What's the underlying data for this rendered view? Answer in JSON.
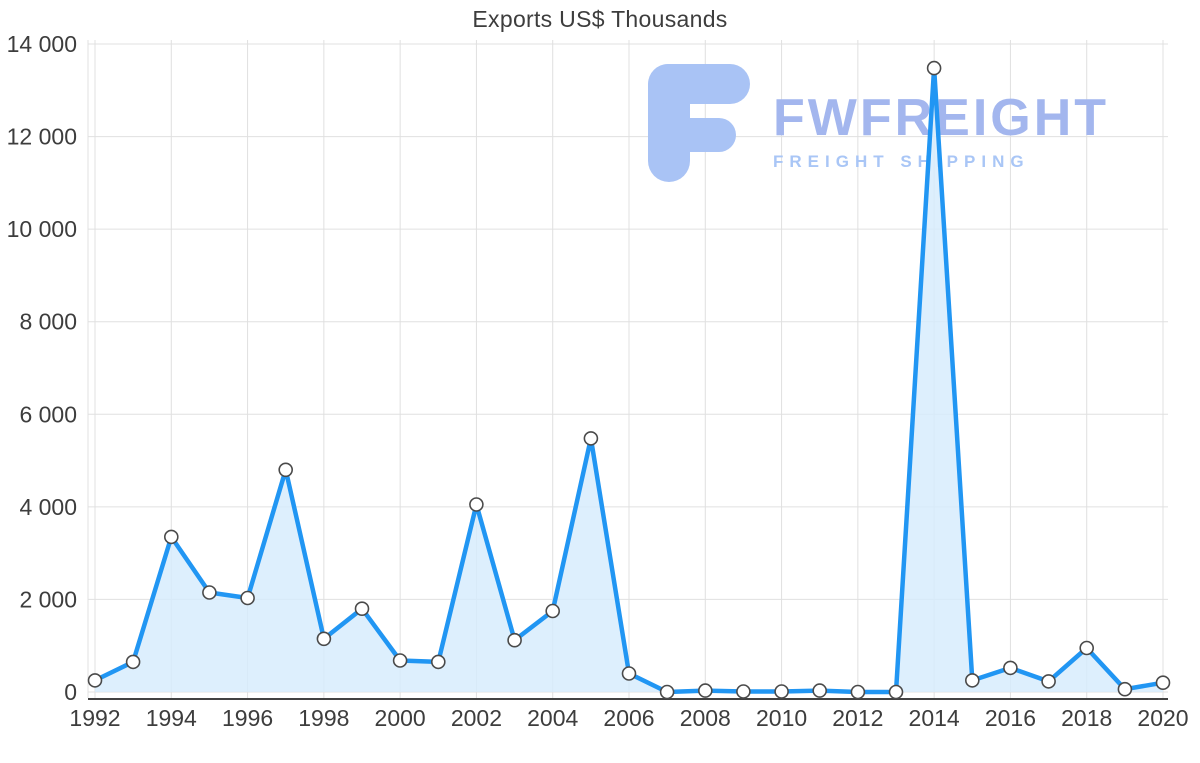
{
  "chart_data": {
    "type": "area",
    "title": "Exports US$ Thousands",
    "x": [
      1992,
      1993,
      1994,
      1995,
      1996,
      1997,
      1998,
      1999,
      2000,
      2001,
      2002,
      2003,
      2004,
      2005,
      2006,
      2007,
      2008,
      2009,
      2010,
      2011,
      2012,
      2013,
      2014,
      2015,
      2016,
      2017,
      2018,
      2019,
      2020
    ],
    "values": [
      250,
      650,
      3350,
      2150,
      2030,
      4800,
      1150,
      1800,
      680,
      650,
      4050,
      1120,
      1750,
      5480,
      400,
      0,
      30,
      10,
      10,
      30,
      0,
      0,
      13480,
      250,
      520,
      230,
      950,
      60,
      200
    ],
    "ylim": [
      0,
      14000
    ],
    "ytick_step": 2000,
    "ytick_labels": [
      "0",
      "2 000",
      "4 000",
      "6 000",
      "8 000",
      "10 000",
      "12 000",
      "14 000"
    ],
    "xtick_every": 2,
    "xtick_labels": [
      "1992",
      "1994",
      "1996",
      "1998",
      "2000",
      "2002",
      "2004",
      "2006",
      "2008",
      "2010",
      "2012",
      "2014",
      "2016",
      "2018",
      "2020"
    ],
    "grid": true,
    "legend": false,
    "xlabel": "",
    "ylabel": "",
    "line_color": "#2196f3",
    "area_color": "rgba(214, 236, 252, 0.82)",
    "marker_fill": "#ffffff",
    "marker_stroke": "#4a4a4a",
    "grid_color": "#e0e0e0",
    "axis_color": "#424242",
    "tick_color": "#3d3d3d"
  },
  "watermark": {
    "brand": "FWFREIGHT",
    "tagline": "FREIGHT SHIPPING",
    "brand_color": "#a3b6ee",
    "tagline_color": "#a9c6f6",
    "logo_color": "#a9c3f5"
  }
}
